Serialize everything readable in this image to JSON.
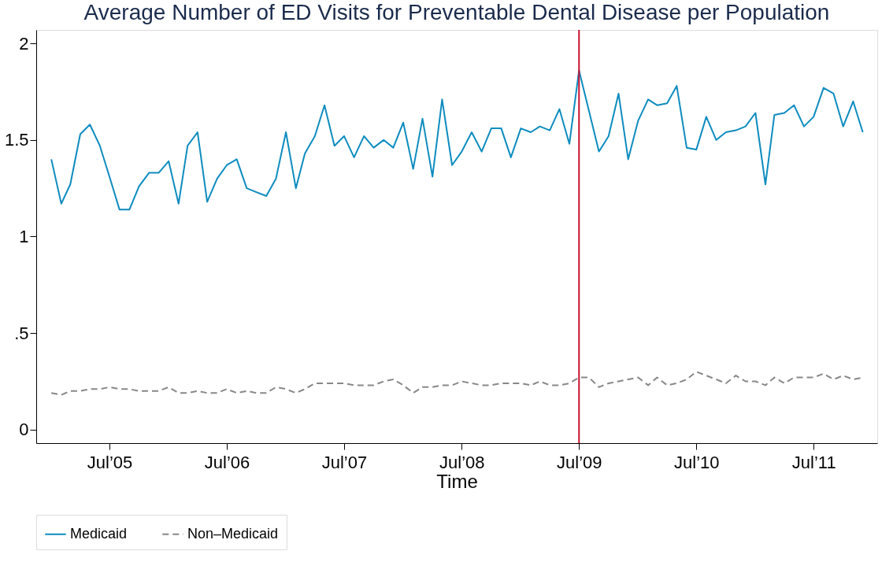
{
  "chart_data": {
    "type": "line",
    "title": "Average Number of ED Visits for Preventable Dental Disease per Population",
    "xlabel": "Time",
    "x": [
      "2005-01",
      "2005-02",
      "2005-03",
      "2005-04",
      "2005-05",
      "2005-06",
      "2005-07",
      "2005-08",
      "2005-09",
      "2005-10",
      "2005-11",
      "2005-12",
      "2006-01",
      "2006-02",
      "2006-03",
      "2006-04",
      "2006-05",
      "2006-06",
      "2006-07",
      "2006-08",
      "2006-09",
      "2006-10",
      "2006-11",
      "2006-12",
      "2007-01",
      "2007-02",
      "2007-03",
      "2007-04",
      "2007-05",
      "2007-06",
      "2007-07",
      "2007-08",
      "2007-09",
      "2007-10",
      "2007-11",
      "2007-12",
      "2008-01",
      "2008-02",
      "2008-03",
      "2008-04",
      "2008-05",
      "2008-06",
      "2008-07",
      "2008-08",
      "2008-09",
      "2008-10",
      "2008-11",
      "2008-12",
      "2009-01",
      "2009-02",
      "2009-03",
      "2009-04",
      "2009-05",
      "2009-06",
      "2009-07",
      "2009-08",
      "2009-09",
      "2009-10",
      "2009-11",
      "2009-12",
      "2010-01",
      "2010-02",
      "2010-03",
      "2010-04",
      "2010-05",
      "2010-06",
      "2010-07",
      "2010-08",
      "2010-09",
      "2010-10",
      "2010-11",
      "2010-12",
      "2011-01",
      "2011-02",
      "2011-03",
      "2011-04",
      "2011-05",
      "2011-06",
      "2011-07",
      "2011-08",
      "2011-09",
      "2011-10",
      "2011-11",
      "2011-12"
    ],
    "series": [
      {
        "name": "Medicaid",
        "color": "#0e8cbf",
        "line_style": "solid",
        "values": [
          1.4,
          1.17,
          1.27,
          1.53,
          1.58,
          1.47,
          1.31,
          1.14,
          1.14,
          1.26,
          1.33,
          1.33,
          1.39,
          1.17,
          1.47,
          1.54,
          1.18,
          1.3,
          1.37,
          1.4,
          1.25,
          1.23,
          1.21,
          1.3,
          1.54,
          1.25,
          1.43,
          1.52,
          1.68,
          1.47,
          1.52,
          1.41,
          1.52,
          1.46,
          1.5,
          1.46,
          1.59,
          1.35,
          1.61,
          1.31,
          1.71,
          1.37,
          1.44,
          1.54,
          1.44,
          1.56,
          1.56,
          1.41,
          1.56,
          1.54,
          1.57,
          1.55,
          1.66,
          1.48,
          1.86,
          1.65,
          1.44,
          1.52,
          1.74,
          1.4,
          1.6,
          1.71,
          1.68,
          1.69,
          1.78,
          1.46,
          1.45,
          1.62,
          1.5,
          1.54,
          1.55,
          1.57,
          1.64,
          1.27,
          1.63,
          1.64,
          1.68,
          1.57,
          1.62,
          1.77,
          1.74,
          1.57,
          1.7,
          1.54
        ]
      },
      {
        "name": "Non–Medicaid",
        "color": "#888888",
        "line_style": "dashed",
        "values": [
          0.19,
          0.18,
          0.2,
          0.2,
          0.21,
          0.21,
          0.22,
          0.21,
          0.21,
          0.2,
          0.2,
          0.2,
          0.22,
          0.19,
          0.19,
          0.2,
          0.19,
          0.19,
          0.21,
          0.19,
          0.2,
          0.19,
          0.19,
          0.22,
          0.21,
          0.19,
          0.21,
          0.24,
          0.24,
          0.24,
          0.24,
          0.23,
          0.23,
          0.23,
          0.25,
          0.26,
          0.23,
          0.19,
          0.22,
          0.22,
          0.23,
          0.23,
          0.25,
          0.24,
          0.23,
          0.23,
          0.24,
          0.24,
          0.24,
          0.23,
          0.25,
          0.23,
          0.23,
          0.24,
          0.27,
          0.27,
          0.22,
          0.24,
          0.25,
          0.26,
          0.27,
          0.23,
          0.27,
          0.23,
          0.24,
          0.26,
          0.3,
          0.28,
          0.26,
          0.24,
          0.28,
          0.25,
          0.25,
          0.23,
          0.27,
          0.24,
          0.27,
          0.27,
          0.27,
          0.29,
          0.26,
          0.28,
          0.26,
          0.27
        ]
      }
    ],
    "xlim": [
      "2004-11-15",
      "2012-01-15"
    ],
    "xticks": [
      {
        "value": "2005-07",
        "label": "Jul’05"
      },
      {
        "value": "2006-07",
        "label": "Jul’06"
      },
      {
        "value": "2007-07",
        "label": "Jul’07"
      },
      {
        "value": "2008-07",
        "label": "Jul’08"
      },
      {
        "value": "2009-07",
        "label": "Jul’09"
      },
      {
        "value": "2010-07",
        "label": "Jul’10"
      },
      {
        "value": "2011-07",
        "label": "Jul’11"
      }
    ],
    "ylim": [
      -0.07,
      2.07
    ],
    "yticks": [
      0,
      {
        "value": 0.5,
        "label": ".5"
      },
      1,
      1.5,
      2
    ],
    "ref_lines": [
      {
        "axis": "x",
        "value": "2009-07",
        "color": "#c8102e"
      }
    ],
    "grid": false,
    "legend": "bottom",
    "marker": "none"
  }
}
